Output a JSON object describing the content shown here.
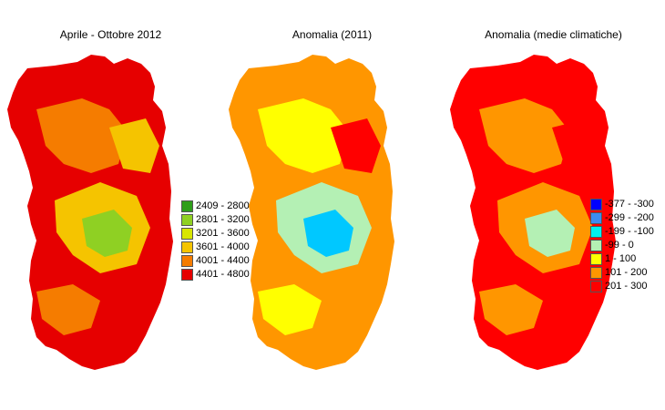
{
  "panels": [
    {
      "title": "Aprile - Ottobre 2012",
      "legend": [
        {
          "label": "2409 - 2800",
          "color": "#2e9e1a"
        },
        {
          "label": "2801 - 3200",
          "color": "#8fd023"
        },
        {
          "label": "3201 - 3600",
          "color": "#d8e600"
        },
        {
          "label": "3601 - 4000",
          "color": "#f5c400"
        },
        {
          "label": "4001 - 4400",
          "color": "#f57c00"
        },
        {
          "label": "4401 - 4800",
          "color": "#e60000"
        }
      ]
    },
    {
      "title": "Anomalia (2011)",
      "legend": []
    },
    {
      "title": "Anomalia (medie climatiche)",
      "legend": [
        {
          "label": "-377 - -300",
          "color": "#0000ff"
        },
        {
          "label": "-299 - -200",
          "color": "#3c8cf0"
        },
        {
          "label": "-199 - -100",
          "color": "#00f0f0"
        },
        {
          "label": "-99 - 0",
          "color": "#b4f0b4"
        },
        {
          "label": "1 - 100",
          "color": "#ffff00"
        },
        {
          "label": "101 - 200",
          "color": "#ff9600"
        },
        {
          "label": "201 - 300",
          "color": "#ff0000"
        }
      ]
    }
  ]
}
